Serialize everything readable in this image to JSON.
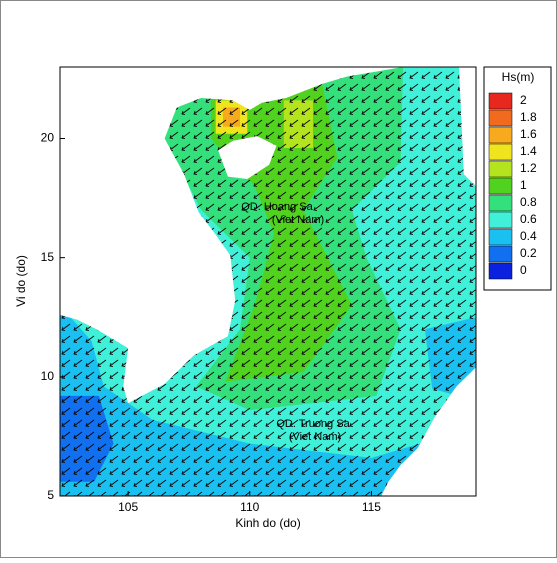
{
  "chart_data": {
    "type": "map",
    "xlabel": "Kinh do (do)",
    "ylabel": "Vi do (do)",
    "xlim": [
      102.2,
      119.3
    ],
    "ylim": [
      5,
      23
    ],
    "xticks": [
      105,
      110,
      115
    ],
    "yticks": [
      5,
      10,
      15,
      20
    ],
    "colorbar": {
      "title": "Hs(m)",
      "levels": [
        2,
        1.8,
        1.6,
        1.4,
        1.2,
        1,
        0.8,
        0.6,
        0.4,
        0.2,
        0
      ],
      "colors": [
        "#e8281e",
        "#f26a1e",
        "#f8aa1e",
        "#f0e41e",
        "#b4e41e",
        "#50d21e",
        "#34e07c",
        "#40f0d8",
        "#1ac0f0",
        "#1070f0",
        "#0a22e0"
      ]
    },
    "annotations": [
      "QD. Hoang Sa",
      "(Viet Nam)",
      "QD. Truong Sa",
      "(Viet Nam)"
    ]
  }
}
